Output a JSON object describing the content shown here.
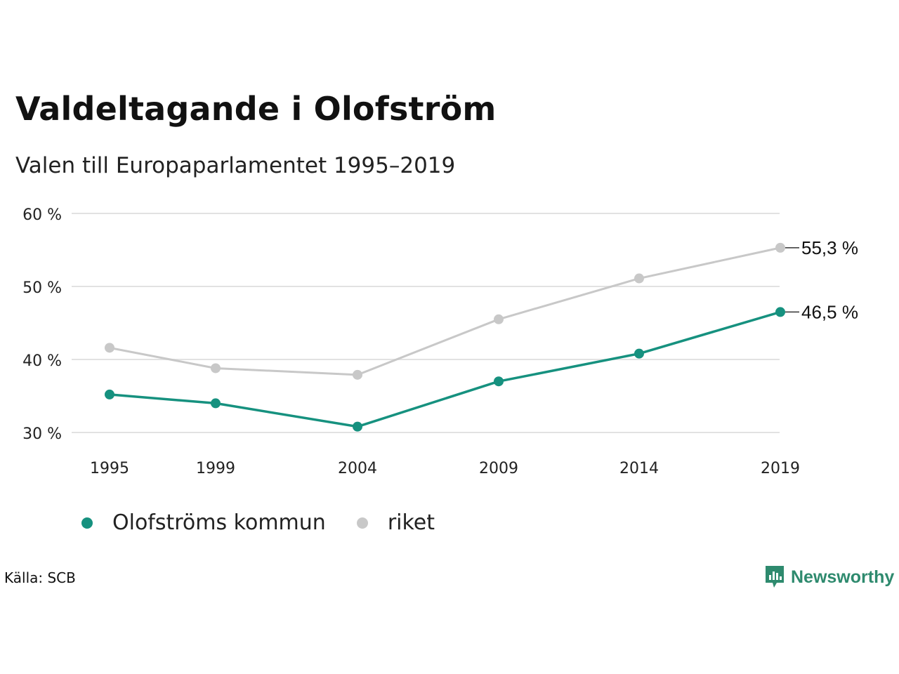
{
  "header": {
    "title": "Valdeltagande i Olofström",
    "subtitle": "Valen till Europaparlamentet 1995–2019"
  },
  "chart_data": {
    "type": "line",
    "x": [
      "1995",
      "1999",
      "2004",
      "2009",
      "2014",
      "2019"
    ],
    "series": [
      {
        "name": "Olofströms kommun",
        "color": "#16917f",
        "values": [
          35.2,
          34.0,
          30.8,
          37.0,
          40.8,
          46.5
        ],
        "end_label": "46,5 %"
      },
      {
        "name": "riket",
        "color": "#c8c8c8",
        "values": [
          41.6,
          38.8,
          37.9,
          45.5,
          51.1,
          55.3
        ],
        "end_label": "55,3 %"
      }
    ],
    "yticks": [
      {
        "value": 30,
        "label": "30 %"
      },
      {
        "value": 40,
        "label": "40 %"
      },
      {
        "value": 50,
        "label": "50 %"
      },
      {
        "value": 60,
        "label": "60 %"
      }
    ],
    "ylim": [
      30,
      60
    ],
    "grid": true,
    "legend_position": "bottom-left"
  },
  "footer": {
    "source": "Källa: SCB",
    "brand": "Newsworthy",
    "brand_icon": "newsworthy-logo-icon",
    "brand_color": "#2e8a6e"
  }
}
